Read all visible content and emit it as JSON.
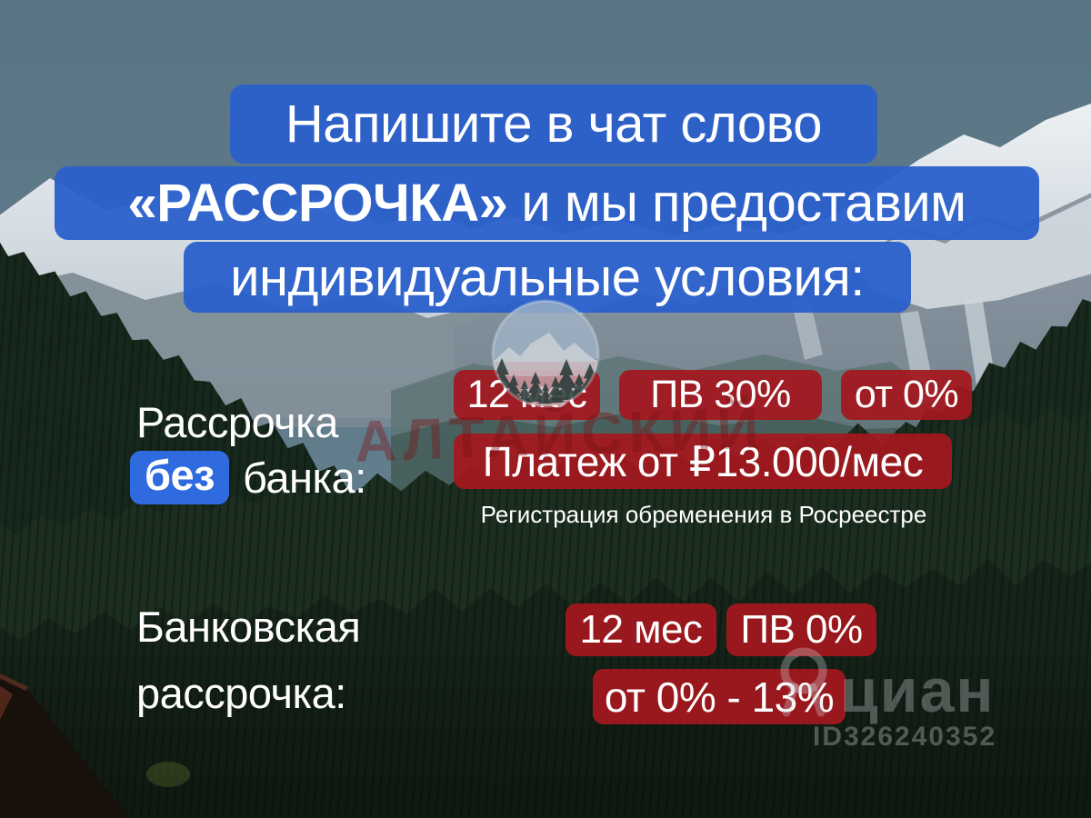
{
  "colors": {
    "banner_blue": "rgba(42,96,203,0.95)",
    "highlight_blue": "#2f6ade",
    "badge_red": "rgba(164,24,30,0.93)"
  },
  "banner": {
    "line1": "Напишите в чат слово",
    "line2_strong": "«РАССРОЧКА»",
    "line2_rest": "и мы предоставим",
    "line3": "индивидуальные условия:"
  },
  "installment_no_bank": {
    "label_top": "Рассрочка",
    "label_highlight": "без",
    "label_bottom": "банка:",
    "badge_term": "12 мес",
    "badge_downpayment": "ПВ 30%",
    "badge_rate": "от 0%",
    "badge_payment": "Платеж от ₽13.000/мес",
    "note": "Регистрация обременения в Росреестре"
  },
  "bank_installment": {
    "label_top": "Банковская",
    "label_bottom": "рассрочка:",
    "badge_term": "12 мес",
    "badge_downpayment": "ПВ 0%",
    "badge_rate": "от 0% - 13%"
  },
  "watermarks": {
    "agency": "АЛТАЙСКИЙ",
    "brand": "циан",
    "listing_id": "ID326240352",
    "logo": "mountain-forest-circle-logo"
  }
}
